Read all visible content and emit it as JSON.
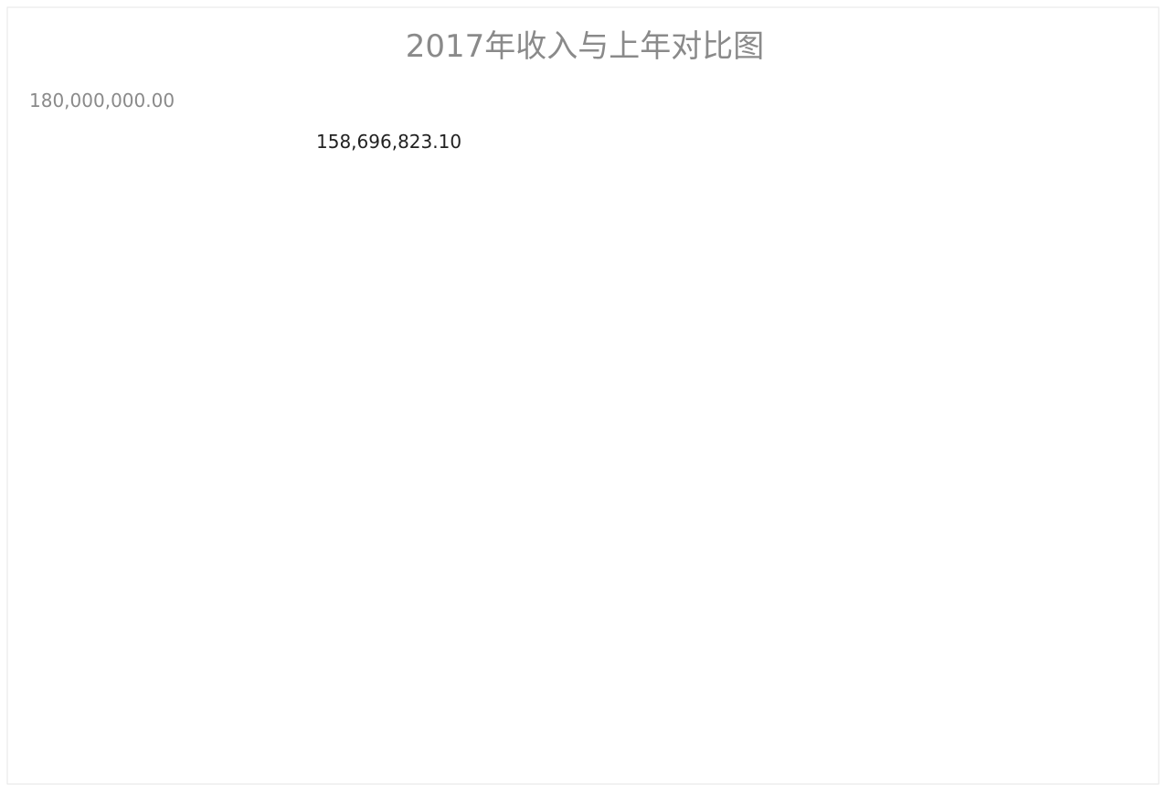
{
  "chart_data": {
    "type": "bar",
    "title": "2017年收入与上年对比图",
    "ylim": [
      0,
      180000000
    ],
    "y_tick_labels": [
      "180,000,000.00"
    ],
    "data_labels": [
      "158,696,823.10"
    ],
    "grid": false,
    "colors": {
      "title_text": "#8a8a8a",
      "label_text": "#222222",
      "frame": "#e6e6e6"
    }
  }
}
